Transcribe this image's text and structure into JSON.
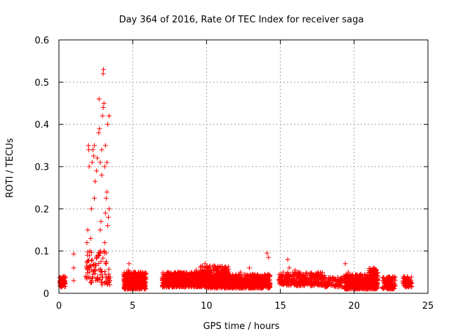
{
  "chart_data": {
    "type": "scatter",
    "title": "Day 364 of 2016, Rate Of TEC Index for receiver saga",
    "xlabel": "GPS time / hours",
    "ylabel": "ROTI / TECUs",
    "xlim": [
      0,
      25
    ],
    "ylim": [
      0,
      0.6
    ],
    "x_ticks": [
      0,
      5,
      10,
      15,
      20,
      25
    ],
    "x_tick_labels": [
      "0",
      "5",
      "10",
      "15",
      "20",
      "25"
    ],
    "y_ticks": [
      0,
      0.1,
      0.2,
      0.3,
      0.4,
      0.5,
      0.6
    ],
    "y_tick_labels": [
      "0",
      "0.1",
      "0.2",
      "0.3",
      "0.4",
      "0.5",
      "0.6"
    ],
    "grid": true,
    "marker": "+",
    "series": [
      {
        "name": "ROTI",
        "color": "#ff0000",
        "points": [
          [
            0.1,
            0.03
          ],
          [
            0.15,
            0.025
          ],
          [
            0.2,
            0.02
          ],
          [
            0.25,
            0.035
          ],
          [
            0.3,
            0.028
          ],
          [
            1.0,
            0.093
          ],
          [
            1.0,
            0.06
          ],
          [
            1.0,
            0.03
          ],
          [
            1.8,
            0.04
          ],
          [
            1.85,
            0.06
          ],
          [
            1.9,
            0.12
          ],
          [
            1.95,
            0.15
          ],
          [
            2.0,
            0.35
          ],
          [
            2.02,
            0.34
          ],
          [
            2.05,
            0.3
          ],
          [
            2.1,
            0.1
          ],
          [
            2.1,
            0.065
          ],
          [
            2.15,
            0.13
          ],
          [
            2.2,
            0.055
          ],
          [
            2.2,
            0.2
          ],
          [
            2.25,
            0.31
          ],
          [
            2.3,
            0.34
          ],
          [
            2.3,
            0.045
          ],
          [
            2.35,
            0.325
          ],
          [
            2.4,
            0.35
          ],
          [
            2.4,
            0.225
          ],
          [
            2.45,
            0.265
          ],
          [
            2.5,
            0.03
          ],
          [
            2.55,
            0.29
          ],
          [
            2.6,
            0.32
          ],
          [
            2.65,
            0.09
          ],
          [
            2.7,
            0.38
          ],
          [
            2.72,
            0.46
          ],
          [
            2.75,
            0.39
          ],
          [
            2.8,
            0.15
          ],
          [
            2.8,
            0.31
          ],
          [
            2.85,
            0.17
          ],
          [
            2.85,
            0.075
          ],
          [
            2.9,
            0.34
          ],
          [
            2.9,
            0.28
          ],
          [
            2.95,
            0.42
          ],
          [
            3.0,
            0.44
          ],
          [
            3.0,
            0.52
          ],
          [
            3.02,
            0.53
          ],
          [
            3.05,
            0.45
          ],
          [
            3.05,
            0.1
          ],
          [
            3.1,
            0.3
          ],
          [
            3.1,
            0.12
          ],
          [
            3.15,
            0.35
          ],
          [
            3.15,
            0.19
          ],
          [
            3.2,
            0.225
          ],
          [
            3.2,
            0.07
          ],
          [
            3.25,
            0.24
          ],
          [
            3.25,
            0.31
          ],
          [
            3.3,
            0.4
          ],
          [
            3.3,
            0.16
          ],
          [
            3.35,
            0.18
          ],
          [
            3.35,
            0.04
          ],
          [
            3.4,
            0.42
          ],
          [
            3.4,
            0.2
          ],
          [
            3.45,
            0.02
          ],
          [
            3.45,
            0.03
          ],
          [
            4.5,
            0.02
          ],
          [
            4.6,
            0.035
          ],
          [
            4.7,
            0.055
          ],
          [
            4.75,
            0.07
          ],
          [
            4.8,
            0.04
          ],
          [
            4.9,
            0.025
          ],
          [
            5.0,
            0.03
          ],
          [
            5.1,
            0.045
          ],
          [
            5.2,
            0.02
          ],
          [
            5.3,
            0.035
          ],
          [
            5.4,
            0.05
          ],
          [
            5.5,
            0.03
          ],
          [
            5.6,
            0.04
          ],
          [
            7.2,
            0.03
          ],
          [
            7.5,
            0.04
          ],
          [
            7.8,
            0.025
          ],
          [
            8.1,
            0.05
          ],
          [
            8.4,
            0.035
          ],
          [
            8.7,
            0.045
          ],
          [
            9.0,
            0.03
          ],
          [
            9.3,
            0.055
          ],
          [
            9.6,
            0.04
          ],
          [
            9.9,
            0.07
          ],
          [
            10.2,
            0.05
          ],
          [
            10.5,
            0.065
          ],
          [
            10.8,
            0.035
          ],
          [
            11.1,
            0.04
          ],
          [
            11.4,
            0.055
          ],
          [
            11.7,
            0.03
          ],
          [
            12.0,
            0.045
          ],
          [
            12.3,
            0.05
          ],
          [
            12.6,
            0.035
          ],
          [
            12.9,
            0.06
          ],
          [
            13.2,
            0.04
          ],
          [
            13.5,
            0.025
          ],
          [
            13.8,
            0.03
          ],
          [
            14.1,
            0.095
          ],
          [
            14.2,
            0.085
          ],
          [
            14.25,
            0.02
          ],
          [
            15.0,
            0.04
          ],
          [
            15.2,
            0.05
          ],
          [
            15.5,
            0.08
          ],
          [
            15.6,
            0.06
          ],
          [
            15.8,
            0.03
          ],
          [
            16.0,
            0.055
          ],
          [
            16.2,
            0.045
          ],
          [
            16.5,
            0.035
          ],
          [
            16.8,
            0.025
          ],
          [
            17.1,
            0.03
          ],
          [
            17.5,
            0.04
          ],
          [
            17.9,
            0.03
          ],
          [
            18.3,
            0.025
          ],
          [
            18.6,
            0.035
          ],
          [
            19.0,
            0.03
          ],
          [
            19.4,
            0.07
          ],
          [
            19.6,
            0.05
          ],
          [
            19.8,
            0.04
          ],
          [
            20.2,
            0.03
          ],
          [
            20.5,
            0.025
          ],
          [
            20.8,
            0.035
          ],
          [
            21.1,
            0.045
          ],
          [
            21.3,
            0.06
          ],
          [
            21.5,
            0.04
          ],
          [
            22.0,
            0.03
          ],
          [
            22.3,
            0.025
          ],
          [
            22.6,
            0.035
          ],
          [
            23.5,
            0.03
          ],
          [
            23.7,
            0.025
          ]
        ],
        "bands": [
          {
            "x": [
              0.05,
              0.45
            ],
            "y": [
              0.015,
              0.04
            ],
            "n": 70
          },
          {
            "x": [
              1.85,
              3.5
            ],
            "y": [
              0.02,
              0.1
            ],
            "n": 90
          },
          {
            "x": [
              4.4,
              5.9
            ],
            "y": [
              0.01,
              0.05
            ],
            "n": 380
          },
          {
            "x": [
              7.0,
              10.0
            ],
            "y": [
              0.015,
              0.05
            ],
            "n": 650
          },
          {
            "x": [
              9.5,
              11.5
            ],
            "y": [
              0.02,
              0.065
            ],
            "n": 350
          },
          {
            "x": [
              10.0,
              14.3
            ],
            "y": [
              0.012,
              0.045
            ],
            "n": 760
          },
          {
            "x": [
              14.9,
              15.3
            ],
            "y": [
              0.02,
              0.045
            ],
            "n": 40
          },
          {
            "x": [
              15.3,
              18.0
            ],
            "y": [
              0.018,
              0.05
            ],
            "n": 280
          },
          {
            "x": [
              18.0,
              19.2
            ],
            "y": [
              0.015,
              0.038
            ],
            "n": 90
          },
          {
            "x": [
              19.3,
              21.6
            ],
            "y": [
              0.01,
              0.045
            ],
            "n": 440
          },
          {
            "x": [
              21.0,
              21.6
            ],
            "y": [
              0.03,
              0.06
            ],
            "n": 100
          },
          {
            "x": [
              21.9,
              22.8
            ],
            "y": [
              0.01,
              0.04
            ],
            "n": 120
          },
          {
            "x": [
              23.3,
              23.9
            ],
            "y": [
              0.015,
              0.04
            ],
            "n": 70
          }
        ]
      }
    ]
  }
}
